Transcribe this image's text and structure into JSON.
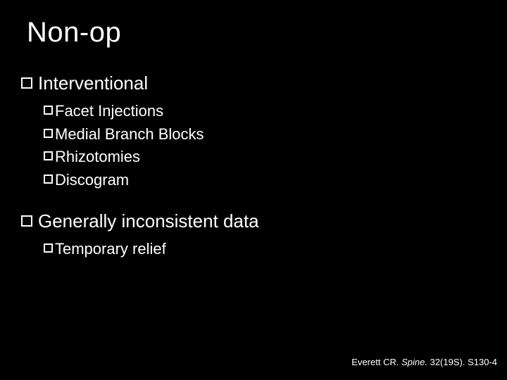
{
  "background_color": "#000000",
  "text_color": "#ffffff",
  "title": "Non-op",
  "title_fontsize": 40,
  "l1_fontsize": 26,
  "l2_fontsize": 22,
  "sections": [
    {
      "heading": "Interventional",
      "items": [
        "Facet Injections",
        "Medial Branch Blocks",
        "Rhizotomies",
        "Discogram"
      ]
    },
    {
      "heading": "Generally inconsistent data",
      "items": [
        "Temporary relief"
      ]
    }
  ],
  "citation": {
    "author": "Everett CR.",
    "journal": "Spine.",
    "details": "32(19S). S130-4"
  }
}
